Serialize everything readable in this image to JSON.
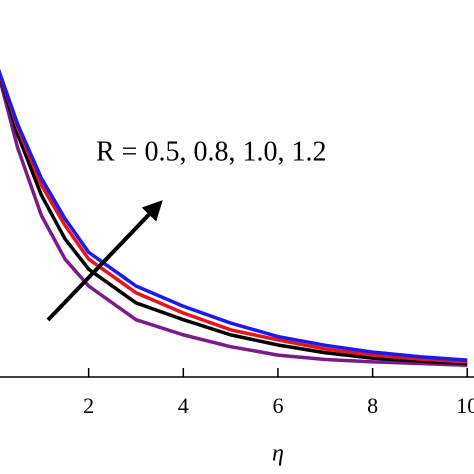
{
  "chart_data": {
    "type": "line",
    "x_label": "η",
    "annotation": "R = 0.5, 0.8, 1.0, 1.2",
    "x": [
      0,
      0.5,
      1,
      1.5,
      2,
      3,
      4,
      5,
      6,
      7,
      8,
      9,
      10
    ],
    "series": [
      {
        "color": "#7b1a8c",
        "values": [
          0.95,
          0.68,
          0.48,
          0.35,
          0.27,
          0.17,
          0.125,
          0.09,
          0.065,
          0.052,
          0.045,
          0.04,
          0.035
        ]
      },
      {
        "color": "#000000",
        "values": [
          0.95,
          0.72,
          0.54,
          0.41,
          0.32,
          0.22,
          0.17,
          0.125,
          0.095,
          0.072,
          0.056,
          0.047,
          0.04
        ]
      },
      {
        "color": "#e8131b",
        "values": [
          0.95,
          0.74,
          0.57,
          0.45,
          0.35,
          0.25,
          0.19,
          0.14,
          0.11,
          0.083,
          0.065,
          0.053,
          0.045
        ]
      },
      {
        "color": "#1a1aee",
        "values": [
          0.95,
          0.75,
          0.59,
          0.47,
          0.37,
          0.27,
          0.21,
          0.16,
          0.12,
          0.094,
          0.074,
          0.06,
          0.05
        ]
      }
    ],
    "xlim": [
      0,
      10.1
    ],
    "ylim": [
      0,
      1
    ],
    "xticks": [
      2,
      4,
      6,
      8,
      10
    ]
  }
}
